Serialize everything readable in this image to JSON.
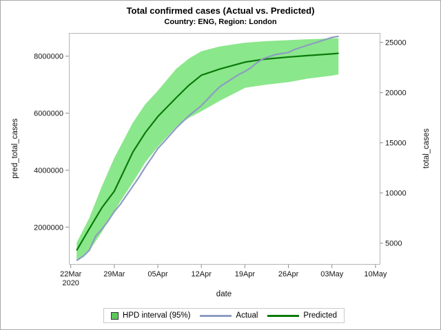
{
  "figure": {
    "title": "Total confirmed cases (Actual vs. Predicted)",
    "subtitle": "Country: ENG, Region: London"
  },
  "legend": {
    "items": [
      {
        "type": "band",
        "label": "HPD interval (95%)",
        "color": "#5CC85C"
      },
      {
        "type": "line",
        "label": "Actual",
        "color": "#8D9CC2"
      },
      {
        "type": "line",
        "label": "Predicted",
        "color": "#087A08"
      }
    ]
  },
  "chart_data": {
    "type": "line",
    "title": "Total confirmed cases (Actual vs. Predicted)",
    "subtitle": "Country: ENG, Region: London",
    "grid": false,
    "legend_position": "bottom",
    "x_axis": {
      "label": "date",
      "tick_dates": [
        "2020-03-22",
        "2020-03-29",
        "2020-04-05",
        "2020-04-12",
        "2020-04-19",
        "2020-04-26",
        "2020-05-03",
        "2020-05-10"
      ],
      "tick_labels": [
        "22Mar",
        "29Mar",
        "05Apr",
        "12Apr",
        "19Apr",
        "26Apr",
        "03May",
        "10May"
      ],
      "first_tick_sublabel": "2020"
    },
    "y_axis_left": {
      "label": "pred_total_cases",
      "min": 704600,
      "max": 8813000,
      "ticks": [
        2000000,
        4000000,
        6000000,
        8000000
      ],
      "tick_labels": [
        "2000000",
        "4000000",
        "6000000",
        "8000000"
      ]
    },
    "y_axis_right": {
      "label": "total_cases",
      "min": 2925,
      "max": 25938,
      "ticks": [
        5000,
        10000,
        15000,
        20000,
        25000
      ],
      "tick_labels": [
        "5000",
        "10000",
        "15000",
        "20000",
        "25000"
      ]
    },
    "band": {
      "name": "HPD interval (95%)",
      "axis": "left",
      "fill": "#8BE78B",
      "dates": [
        "2020-03-23",
        "2020-03-25",
        "2020-03-27",
        "2020-03-29",
        "2020-04-01",
        "2020-04-03",
        "2020-04-05",
        "2020-04-08",
        "2020-04-10",
        "2020-04-12",
        "2020-04-15",
        "2020-04-19",
        "2020-04-22",
        "2020-04-26",
        "2020-04-29",
        "2020-05-03",
        "2020-05-04"
      ],
      "lower": [
        850000,
        1200000,
        1850000,
        2590000,
        3600000,
        4300000,
        4840000,
        5550000,
        5850000,
        6080000,
        6450000,
        6900000,
        7000000,
        7100000,
        7220000,
        7330000,
        7370000
      ],
      "upper": [
        1450000,
        2300000,
        3400000,
        4400000,
        5650000,
        6300000,
        6770000,
        7550000,
        7900000,
        8160000,
        8330000,
        8460000,
        8510000,
        8550000,
        8580000,
        8610000,
        8620000
      ]
    },
    "series": [
      {
        "name": "Predicted",
        "axis": "left",
        "color": "#087A08",
        "width": 2.2,
        "dates": [
          "2020-03-23",
          "2020-03-25",
          "2020-03-27",
          "2020-03-29",
          "2020-04-01",
          "2020-04-03",
          "2020-04-05",
          "2020-04-08",
          "2020-04-10",
          "2020-04-12",
          "2020-04-15",
          "2020-04-19",
          "2020-04-22",
          "2020-04-26",
          "2020-04-29",
          "2020-05-03",
          "2020-05-04"
        ],
        "values": [
          1200000,
          1950000,
          2680000,
          3260000,
          4640000,
          5320000,
          5880000,
          6550000,
          6980000,
          7330000,
          7550000,
          7790000,
          7890000,
          7970000,
          8020000,
          8080000,
          8100000
        ]
      },
      {
        "name": "Actual",
        "axis": "right",
        "color": "#8D9CC2",
        "width": 2.2,
        "start_date": "2020-03-23",
        "cadence": "daily",
        "values": [
          3300,
          3700,
          4300,
          5700,
          6400,
          7200,
          8150,
          8900,
          9800,
          10700,
          11600,
          12600,
          13500,
          14430,
          15100,
          15800,
          16500,
          17100,
          17700,
          18200,
          18700,
          19350,
          20000,
          20600,
          21000,
          21400,
          21800,
          22100,
          22500,
          23000,
          23400,
          23600,
          23800,
          23900,
          24000,
          24300,
          24500,
          24700,
          24900,
          25100,
          25300,
          25500,
          25600
        ]
      }
    ]
  }
}
